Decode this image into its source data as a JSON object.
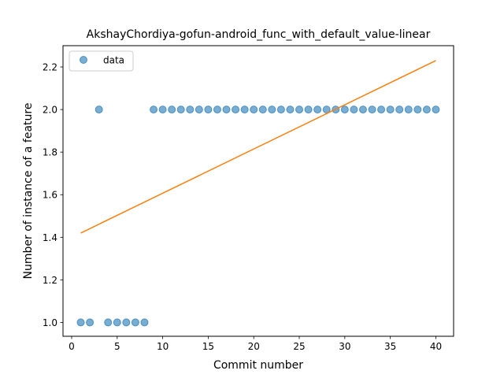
{
  "chart_data": {
    "type": "scatter",
    "title": "AkshayChordiya-gofun-android_func_with_default_value-linear",
    "xlabel": "Commit number",
    "ylabel": "Number of instance of a feature",
    "xlim": [
      -0.95,
      41.95
    ],
    "ylim": [
      0.935,
      2.3
    ],
    "xticks": [
      0,
      5,
      10,
      15,
      20,
      25,
      30,
      35,
      40
    ],
    "xtick_labels": [
      "0",
      "5",
      "10",
      "15",
      "20",
      "25",
      "30",
      "35",
      "40"
    ],
    "yticks": [
      1.0,
      1.2,
      1.4,
      1.6,
      1.8,
      2.0,
      2.2
    ],
    "ytick_labels": [
      "1.0",
      "1.2",
      "1.4",
      "1.6",
      "1.8",
      "2.0",
      "2.2"
    ],
    "grid": false,
    "legend": {
      "position": "top-left",
      "entries": [
        "data"
      ]
    },
    "series": [
      {
        "name": "data",
        "kind": "scatter",
        "color": "#1f77b4",
        "x": [
          1,
          2,
          3,
          4,
          5,
          6,
          7,
          8,
          9,
          10,
          11,
          12,
          13,
          14,
          15,
          16,
          17,
          18,
          19,
          20,
          21,
          22,
          23,
          24,
          25,
          26,
          27,
          28,
          29,
          30,
          31,
          32,
          33,
          34,
          35,
          36,
          37,
          38,
          39,
          40
        ],
        "y": [
          1,
          1,
          2,
          1,
          1,
          1,
          1,
          1,
          2,
          2,
          2,
          2,
          2,
          2,
          2,
          2,
          2,
          2,
          2,
          2,
          2,
          2,
          2,
          2,
          2,
          2,
          2,
          2,
          2,
          2,
          2,
          2,
          2,
          2,
          2,
          2,
          2,
          2,
          2,
          2
        ]
      },
      {
        "kind": "line",
        "color": "#ff7f0e",
        "x": [
          1,
          40
        ],
        "y": [
          1.42,
          2.23
        ]
      }
    ]
  }
}
